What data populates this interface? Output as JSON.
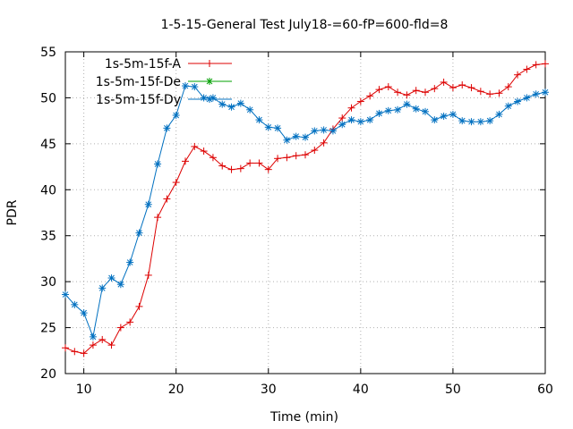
{
  "chart_data": {
    "type": "line",
    "title": "1-5-15-General Test July18-=60-fP=600-fld=8",
    "xlabel": "Time (min)",
    "ylabel": "PDR",
    "xlim": [
      8,
      60
    ],
    "ylim": [
      20,
      55
    ],
    "xticks": [
      10,
      20,
      30,
      40,
      50,
      60
    ],
    "yticks": [
      20,
      25,
      30,
      35,
      40,
      45,
      50,
      55
    ],
    "grid": true,
    "legend_position": "top-left",
    "series": [
      {
        "name": "1s-5m-15f-A",
        "color": "#dd0000",
        "marker": "plus",
        "x": [
          8,
          9,
          10,
          11,
          12,
          13,
          14,
          15,
          16,
          17,
          18,
          19,
          20,
          21,
          22,
          23,
          24,
          25,
          26,
          27,
          28,
          29,
          30,
          31,
          32,
          33,
          34,
          35,
          36,
          37,
          38,
          39,
          40,
          41,
          42,
          43,
          44,
          45,
          46,
          47,
          48,
          49,
          50,
          51,
          52,
          53,
          54,
          55,
          56,
          57,
          58,
          59,
          60
        ],
        "y": [
          22.8,
          22.4,
          22.2,
          23.1,
          23.7,
          23.1,
          25.0,
          25.6,
          27.3,
          30.7,
          37.0,
          39.0,
          40.8,
          43.1,
          44.7,
          44.2,
          43.5,
          42.6,
          42.2,
          42.3,
          42.9,
          42.9,
          42.2,
          43.4,
          43.5,
          43.7,
          43.8,
          44.3,
          45.1,
          46.6,
          47.8,
          48.9,
          49.6,
          50.2,
          50.9,
          51.2,
          50.6,
          50.3,
          50.8,
          50.6,
          51.0,
          51.7,
          51.1,
          51.4,
          51.1,
          50.7,
          50.4,
          50.5,
          51.2,
          52.5,
          53.1,
          53.6,
          53.7
        ]
      },
      {
        "name": "1s-5m-15f-De",
        "color": "#00a000",
        "marker": "star",
        "x": [],
        "y": []
      },
      {
        "name": "1s-5m-15f-Dy",
        "color": "#0070c0",
        "marker": "star",
        "x": [
          8,
          9,
          10,
          11,
          12,
          13,
          14,
          15,
          16,
          17,
          18,
          19,
          20,
          21,
          22,
          23,
          24,
          25,
          26,
          27,
          28,
          29,
          30,
          31,
          32,
          33,
          34,
          35,
          36,
          37,
          38,
          39,
          40,
          41,
          42,
          43,
          44,
          45,
          46,
          47,
          48,
          49,
          50,
          51,
          52,
          53,
          54,
          55,
          56,
          57,
          58,
          59,
          60
        ],
        "y": [
          28.6,
          27.5,
          26.6,
          24.0,
          29.3,
          30.4,
          29.7,
          32.1,
          35.3,
          38.4,
          42.8,
          46.7,
          48.1,
          51.3,
          51.2,
          50.0,
          50.0,
          49.3,
          49.0,
          49.4,
          48.7,
          47.6,
          46.8,
          46.7,
          45.4,
          45.8,
          45.7,
          46.4,
          46.5,
          46.4,
          47.1,
          47.6,
          47.4,
          47.6,
          48.3,
          48.6,
          48.7,
          49.3,
          48.8,
          48.5,
          47.6,
          48.0,
          48.2,
          47.5,
          47.4,
          47.4,
          47.5,
          48.2,
          49.1,
          49.6,
          50.0,
          50.4,
          50.6
        ]
      }
    ]
  }
}
